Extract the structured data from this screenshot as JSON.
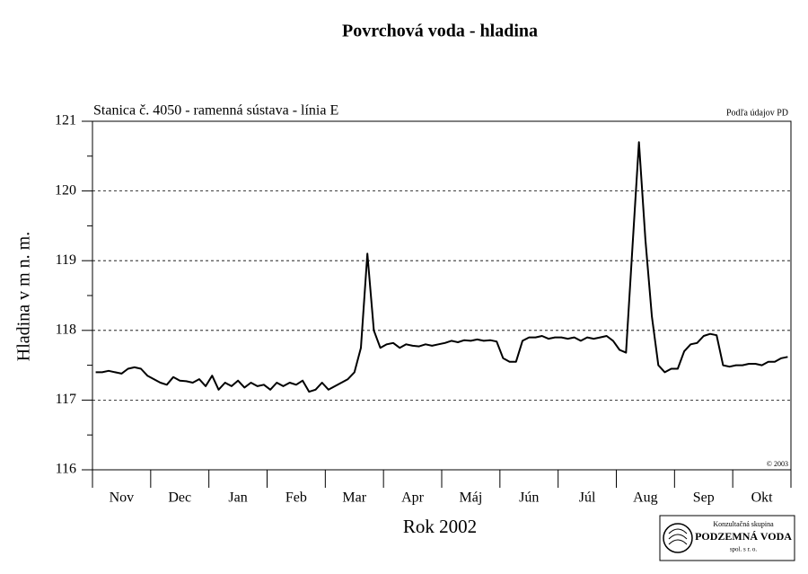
{
  "chart_data": {
    "type": "line",
    "title": "Povrchová voda - hladina",
    "subtitle": "Stanica č. 4050 - ramenná sústava - línia E",
    "source": "Podľa údajov PD",
    "copyright": "© 2003",
    "y_label": "Hladina v m n. m.",
    "x_label": "Rok 2002",
    "categories": [
      null,
      null,
      null,
      null,
      "Nov",
      null,
      null,
      null,
      null,
      null,
      null,
      null,
      null,
      "Dec",
      null,
      null,
      null,
      null,
      null,
      null,
      null,
      null,
      "Jan",
      null,
      null,
      null,
      null,
      null,
      null,
      null,
      null,
      "Feb",
      null,
      null,
      null,
      null,
      null,
      null,
      null,
      null,
      "Mar",
      null,
      null,
      null,
      null,
      null,
      null,
      null,
      null,
      "Apr",
      null,
      null,
      null,
      null,
      null,
      null,
      null,
      null,
      "Máj",
      null,
      null,
      null,
      null,
      null,
      null,
      null,
      null,
      "Jún",
      null,
      null,
      null,
      null,
      null,
      null,
      null,
      null,
      "Júl",
      null,
      null,
      null,
      null,
      null,
      null,
      null,
      null,
      "Aug",
      null,
      null,
      null,
      null,
      null,
      null,
      null,
      null,
      "Sep",
      null,
      null,
      null,
      null,
      null,
      null,
      null,
      null,
      "Okt",
      null,
      null,
      null,
      null
    ],
    "series": [
      {
        "color": "#000000",
        "values": [
          117.4,
          117.4,
          117.42,
          117.4,
          117.38,
          117.45,
          117.47,
          117.45,
          117.35,
          117.3,
          117.25,
          117.22,
          117.33,
          117.28,
          117.27,
          117.25,
          117.3,
          117.2,
          117.35,
          117.15,
          117.25,
          117.2,
          117.28,
          117.18,
          117.25,
          117.2,
          117.22,
          117.15,
          117.25,
          117.2,
          117.25,
          117.22,
          117.28,
          117.12,
          117.15,
          117.25,
          117.15,
          117.2,
          117.25,
          117.3,
          117.4,
          117.75,
          119.1,
          118.0,
          117.75,
          117.8,
          117.82,
          117.75,
          117.8,
          117.78,
          117.77,
          117.8,
          117.78,
          117.8,
          117.82,
          117.85,
          117.83,
          117.86,
          117.85,
          117.87,
          117.85,
          117.86,
          117.84,
          117.6,
          117.55,
          117.55,
          117.85,
          117.9,
          117.9,
          117.92,
          117.88,
          117.9,
          117.9,
          117.88,
          117.9,
          117.85,
          117.9,
          117.88,
          117.9,
          117.92,
          117.85,
          117.72,
          117.68,
          119.2,
          120.7,
          119.3,
          118.2,
          117.5,
          117.4,
          117.45,
          117.45,
          117.7,
          117.8,
          117.82,
          117.92,
          117.95,
          117.93,
          117.5,
          117.48,
          117.5,
          117.5,
          117.52,
          117.52,
          117.5,
          117.55,
          117.55,
          117.6,
          117.62
        ]
      }
    ],
    "ylim": [
      116,
      121
    ],
    "yticks": [
      116,
      117,
      118,
      119,
      120,
      121
    ],
    "grid": true
  },
  "logo": {
    "line1": "Konzultačná skupina",
    "line2": "PODZEMNÁ VODA",
    "line3": "spol. s r. o."
  }
}
